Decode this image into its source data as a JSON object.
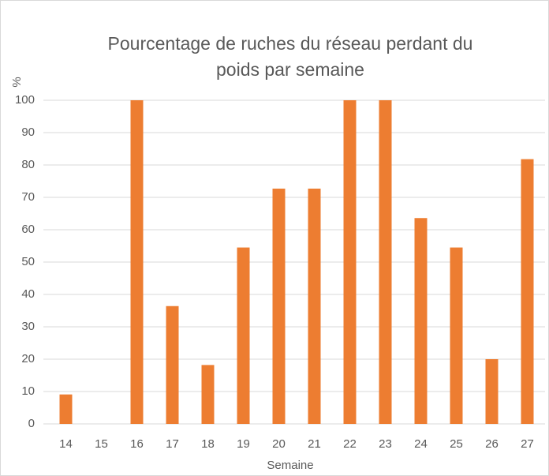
{
  "chart_data": {
    "type": "bar",
    "title": [
      "Pourcentage de ruches du réseau perdant du",
      "poids par semaine"
    ],
    "ylabel": "%",
    "xlabel": "Semaine",
    "categories": [
      "14",
      "15",
      "16",
      "17",
      "18",
      "19",
      "20",
      "21",
      "22",
      "23",
      "24",
      "25",
      "26",
      "27"
    ],
    "values": [
      9.1,
      0,
      100,
      36.4,
      18.2,
      54.5,
      72.7,
      72.7,
      100,
      100,
      63.6,
      54.5,
      20,
      81.8
    ],
    "color": "#ed7d31",
    "ylim": [
      0,
      100
    ],
    "yticks": [
      0,
      10,
      20,
      30,
      40,
      50,
      60,
      70,
      80,
      90,
      100
    ],
    "grid": true
  }
}
